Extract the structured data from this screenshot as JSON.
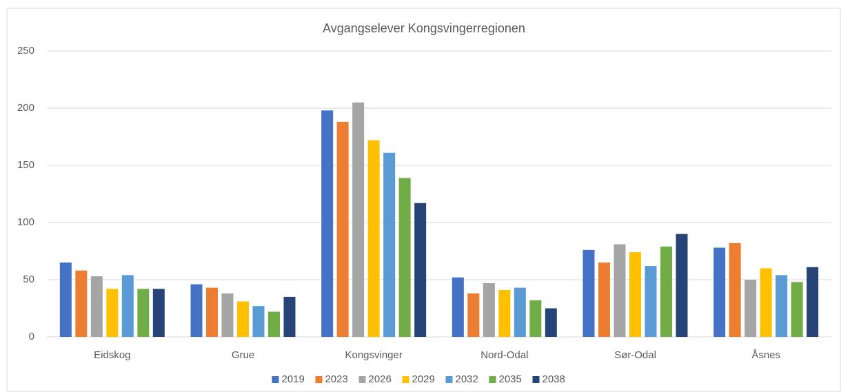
{
  "chart_data": {
    "type": "bar",
    "title": "Avgangselever Kongsvingerregionen",
    "categories": [
      "Eidskog",
      "Grue",
      "Kongsvinger",
      "Nord-Odal",
      "Sør-Odal",
      "Åsnes"
    ],
    "series": [
      {
        "name": "2019",
        "color": "#4472c4",
        "values": [
          65,
          46,
          198,
          52,
          76,
          78
        ]
      },
      {
        "name": "2023",
        "color": "#ed7d31",
        "values": [
          58,
          43,
          188,
          38,
          65,
          82
        ]
      },
      {
        "name": "2026",
        "color": "#a5a5a5",
        "values": [
          53,
          38,
          205,
          47,
          81,
          50
        ]
      },
      {
        "name": "2029",
        "color": "#ffc000",
        "values": [
          42,
          31,
          172,
          41,
          74,
          60
        ]
      },
      {
        "name": "2032",
        "color": "#5b9bd5",
        "values": [
          54,
          27,
          161,
          43,
          62,
          54
        ]
      },
      {
        "name": "2035",
        "color": "#70ad47",
        "values": [
          42,
          22,
          139,
          32,
          79,
          48
        ]
      },
      {
        "name": "2038",
        "color": "#264478",
        "values": [
          42,
          35,
          117,
          25,
          90,
          61
        ]
      }
    ],
    "ylim": [
      0,
      250
    ],
    "yticks": [
      0,
      50,
      100,
      150,
      200,
      250
    ],
    "grid": true,
    "legend": "bottom"
  }
}
